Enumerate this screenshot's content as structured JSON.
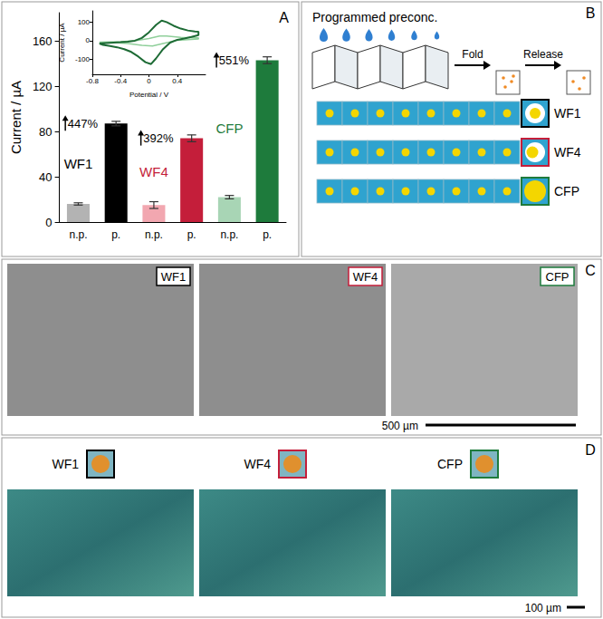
{
  "chart_data": [
    {
      "type": "bar",
      "categories": [
        "n.p.",
        "p.",
        "n.p.",
        "p.",
        "n.p.",
        "p."
      ],
      "groups": [
        "WF1",
        "WF4",
        "CFP"
      ],
      "values": [
        16,
        87,
        15,
        74,
        22,
        143
      ],
      "errors": [
        1,
        2,
        3,
        3,
        1.5,
        3
      ],
      "colors": [
        "#b3b3b3",
        "#000000",
        "#f2a7b0",
        "#c41e3a",
        "#a8d5b5",
        "#1e7b3c"
      ],
      "annotations": [
        "447%",
        "392%",
        "551%"
      ],
      "ylabel": "Current / µA",
      "ylim": [
        0,
        185
      ],
      "yticks": [
        0,
        40,
        80,
        120,
        160
      ]
    },
    {
      "type": "line",
      "xlabel": "Potential / V",
      "ylabel": "Current / µA",
      "xlim": [
        -0.8,
        0.8
      ],
      "xticks": [
        -0.8,
        -0.4,
        0,
        0.4
      ],
      "ylim": [
        -180,
        160
      ],
      "yticks": [
        -100,
        0,
        100
      ],
      "series": [
        {
          "color": "#8fcf9a",
          "x": [
            -0.7,
            -0.4,
            -0.2,
            0,
            0.15,
            0.25,
            0.45,
            0.7,
            0.7,
            0.4,
            0.2,
            0.05,
            -0.1,
            -0.3,
            -0.5,
            -0.7
          ],
          "values": [
            -8,
            -5,
            0,
            12,
            25,
            25,
            18,
            15,
            10,
            2,
            -15,
            -28,
            -25,
            -15,
            -10,
            -8
          ]
        },
        {
          "color": "#1d6b35",
          "x": [
            -0.7,
            -0.6,
            -0.5,
            -0.4,
            -0.3,
            -0.2,
            -0.1,
            0,
            0.1,
            0.18,
            0.25,
            0.35,
            0.45,
            0.55,
            0.65,
            0.7,
            0.7,
            0.6,
            0.5,
            0.4,
            0.3,
            0.2,
            0.1,
            0.03,
            -0.05,
            -0.15,
            -0.25,
            -0.35,
            -0.45,
            -0.55,
            -0.65,
            -0.7
          ],
          "values": [
            -15,
            -12,
            -10,
            -8,
            -5,
            0,
            15,
            45,
            85,
            108,
            100,
            80,
            65,
            55,
            50,
            48,
            30,
            20,
            12,
            5,
            -10,
            -45,
            -95,
            -125,
            -115,
            -85,
            -60,
            -45,
            -35,
            -28,
            -22,
            -15
          ]
        }
      ]
    }
  ],
  "panel_letters": [
    "A",
    "B",
    "C",
    "D"
  ],
  "panel_B": {
    "title": "Programmed preconc.",
    "steps": [
      "Fold",
      "Release"
    ],
    "strips": [
      "WF1",
      "WF4",
      "CFP"
    ]
  },
  "panel_C": {
    "images": [
      "WF1",
      "WF4",
      "CFP"
    ],
    "scale_bar": "500 µm"
  },
  "panel_D": {
    "images": [
      "WF1",
      "WF4",
      "CFP"
    ],
    "scale_bar": "100 µm"
  }
}
